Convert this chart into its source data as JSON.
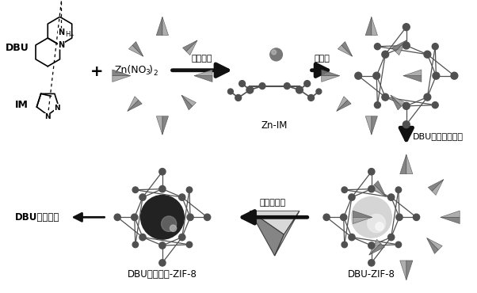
{
  "bg_color": "#ffffff",
  "text_color": "#000000",
  "arrow_color": "#111111",
  "gray_dark": "#505050",
  "gray_mid": "#787878",
  "gray_light": "#a0a0a0",
  "gray_lighter": "#c8c8c8",
  "labels": {
    "dbu": "DBU",
    "im": "IM",
    "coord": "配位结合",
    "self_assemble": "自组装",
    "zn_im": "Zn-IM",
    "confined": "DBU限域于孔笼中",
    "anion_exchange": "阴离子置抛",
    "dbu_zif8": "DBU-ZIF-8",
    "dbu_il_zif8": "DBU离子液体-ZIF-8",
    "dbu_il": "DBU离子液体"
  },
  "font_size_label": 9,
  "font_size_small": 8
}
